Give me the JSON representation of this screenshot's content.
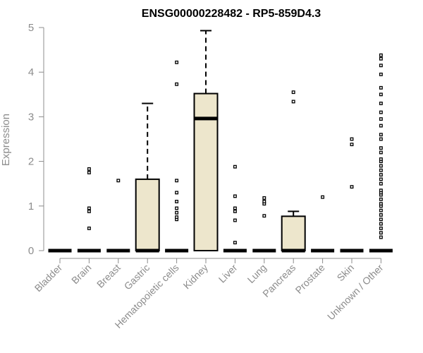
{
  "chart_data": {
    "type": "box",
    "title": "ENSG00000228482 - RP5-859D4.3",
    "xlabel": "",
    "ylabel": "Expression",
    "ylim": [
      0,
      5
    ],
    "yticks": [
      0,
      1,
      2,
      3,
      4,
      5
    ],
    "grid": false,
    "box_fill": "#ede6cc",
    "categories": [
      "Bladder",
      "Brain",
      "Breast",
      "Gastric",
      "Hematopoietic cells",
      "Kidney",
      "Liver",
      "Lung",
      "Pancreas",
      "Prostate",
      "Skin",
      "Unknown / Other"
    ],
    "boxes": [
      {
        "q1": 0,
        "median": 0,
        "q3": 0,
        "whisker_low": 0,
        "whisker_high": 0,
        "outliers": []
      },
      {
        "q1": 0,
        "median": 0,
        "q3": 0,
        "whisker_low": 0,
        "whisker_high": 0,
        "outliers": [
          0.5,
          0.88,
          0.95,
          1.75,
          1.83
        ]
      },
      {
        "q1": 0,
        "median": 0,
        "q3": 0,
        "whisker_low": 0,
        "whisker_high": 0,
        "outliers": [
          1.57
        ]
      },
      {
        "q1": 0,
        "median": 0,
        "q3": 1.6,
        "whisker_low": 0,
        "whisker_high": 3.3,
        "outliers": []
      },
      {
        "q1": 0,
        "median": 0,
        "q3": 0,
        "whisker_low": 0,
        "whisker_high": 0,
        "outliers": [
          0.7,
          0.75,
          0.85,
          0.95,
          1.1,
          1.3,
          1.57,
          3.73,
          4.22
        ]
      },
      {
        "q1": 0,
        "median": 2.96,
        "q3": 3.52,
        "whisker_low": 0,
        "whisker_high": 4.93,
        "outliers": []
      },
      {
        "q1": 0,
        "median": 0,
        "q3": 0,
        "whisker_low": 0,
        "whisker_high": 0,
        "outliers": [
          0.18,
          0.68,
          0.88,
          0.95,
          1.22,
          1.88
        ]
      },
      {
        "q1": 0,
        "median": 0,
        "q3": 0,
        "whisker_low": 0,
        "whisker_high": 0,
        "outliers": [
          0.78,
          1.05,
          1.1,
          1.18
        ]
      },
      {
        "q1": 0,
        "median": 0,
        "q3": 0.77,
        "whisker_low": 0,
        "whisker_high": 0.88,
        "outliers": [
          3.34,
          3.55
        ]
      },
      {
        "q1": 0,
        "median": 0,
        "q3": 0,
        "whisker_low": 0,
        "whisker_high": 0,
        "outliers": [
          1.2
        ]
      },
      {
        "q1": 0,
        "median": 0,
        "q3": 0,
        "whisker_low": 0,
        "whisker_high": 0,
        "outliers": [
          1.43,
          2.38,
          2.5
        ]
      },
      {
        "q1": 0,
        "median": 0,
        "q3": 0,
        "whisker_low": 0,
        "whisker_high": 0,
        "outliers": [
          0.3,
          0.4,
          0.5,
          0.6,
          0.7,
          0.8,
          0.9,
          1.0,
          1.05,
          1.15,
          1.25,
          1.3,
          1.35,
          1.5,
          1.6,
          1.7,
          1.8,
          1.9,
          2.0,
          2.05,
          2.2,
          2.3,
          2.5,
          2.6,
          2.8,
          2.95,
          3.1,
          3.3,
          3.5,
          3.65,
          3.95,
          4.15,
          4.3,
          4.38
        ]
      }
    ]
  }
}
